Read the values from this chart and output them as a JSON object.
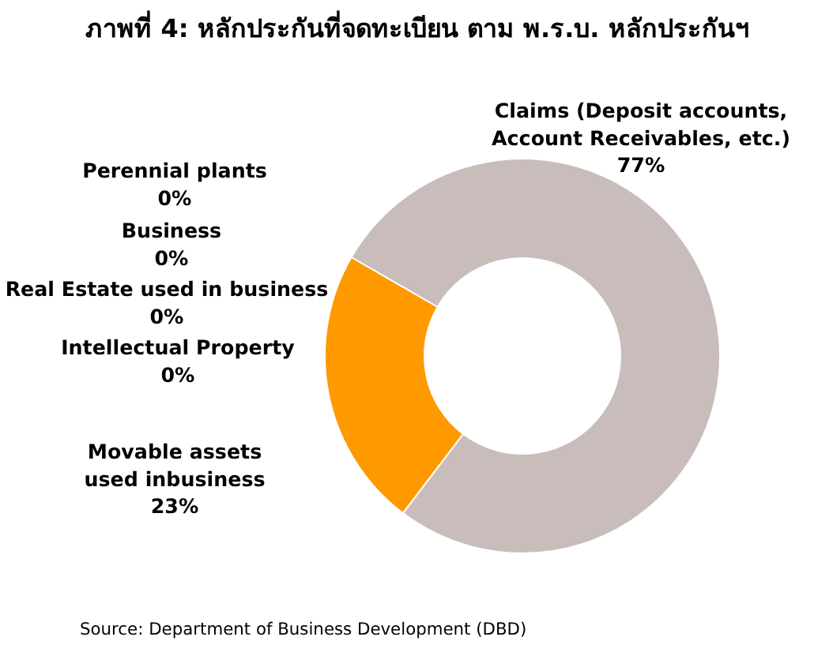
{
  "chart_data": {
    "type": "donut",
    "title": "ภาพที่ 4: หลักประกันที่จดทะเบียน ตาม พ.ร.บ. หลักประกันฯ",
    "categories": [
      "Claims (Deposit accounts, Account Receivables, etc.)",
      "Movable assets used inbusiness",
      "Intellectual Property",
      "Real Estate used in business",
      "Business",
      "Perennial plants"
    ],
    "values": [
      77,
      23,
      0,
      0,
      0,
      0
    ],
    "colors": [
      "#c9bdbb",
      "#ff9900",
      "#4f81bd",
      "#9bbb59",
      "#8064a2",
      "#4bacc6"
    ],
    "value_labels": [
      "77%",
      "23%",
      "0%",
      "0%",
      "0%",
      "0%"
    ],
    "annotations": [
      "Source: Department of Business Development (DBD)"
    ]
  }
}
